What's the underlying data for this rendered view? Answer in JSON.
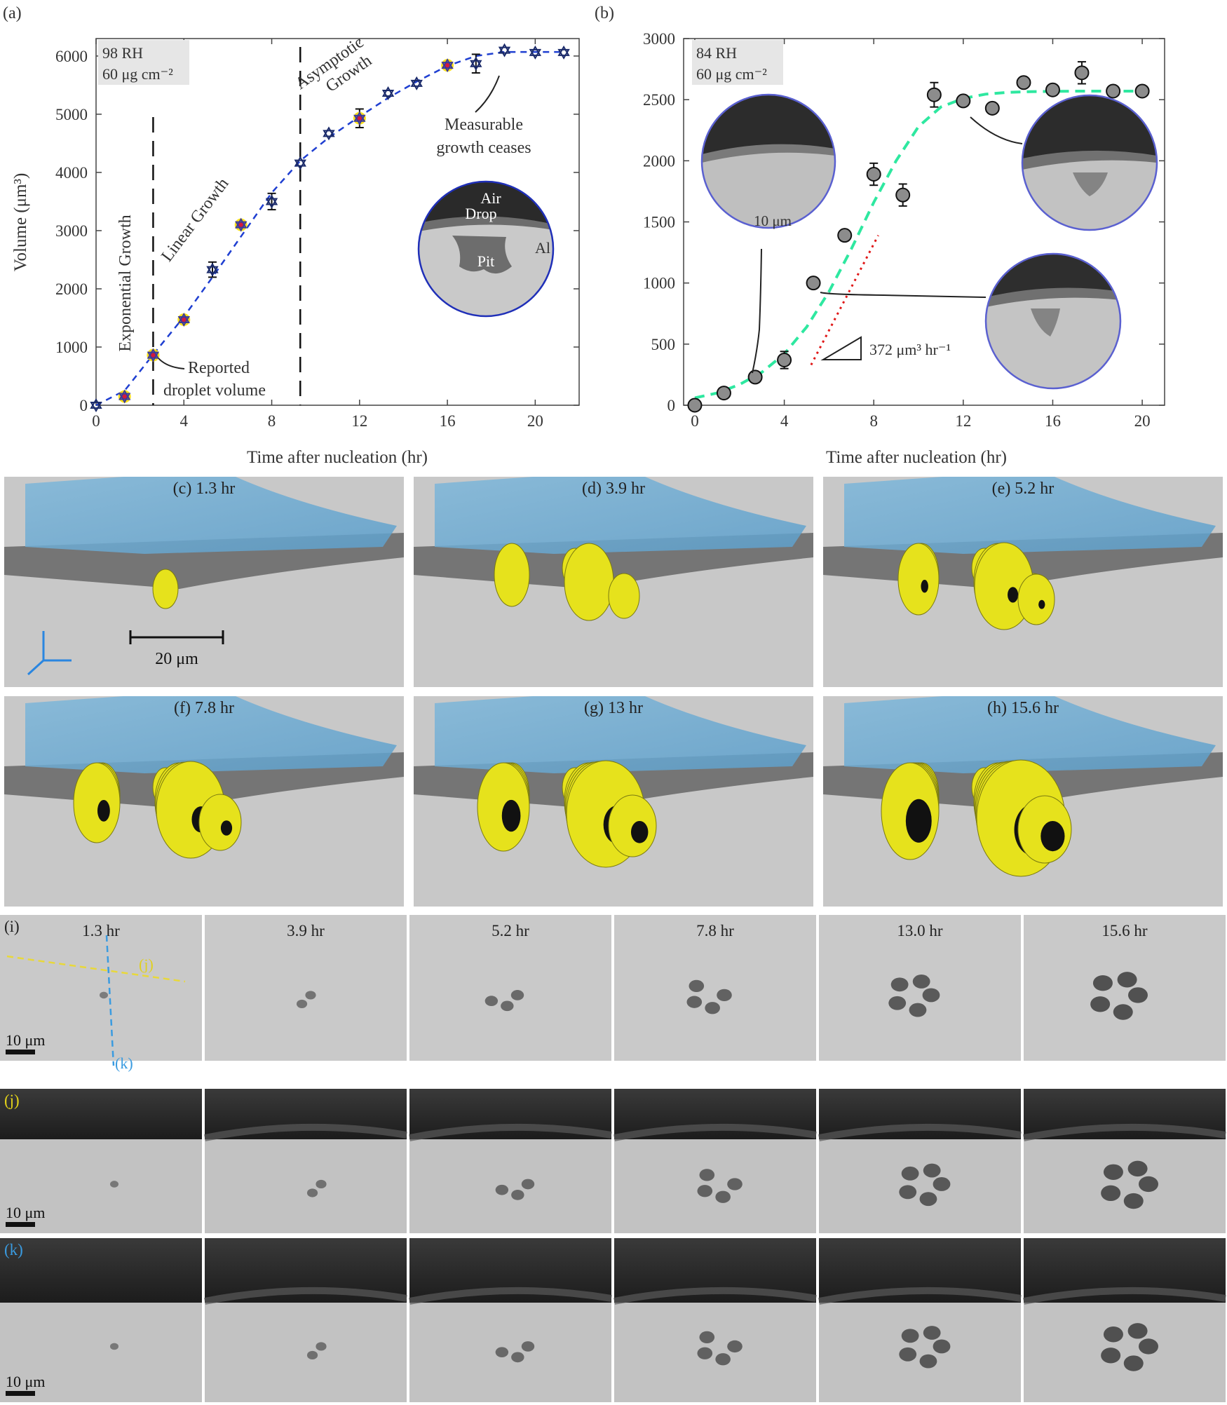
{
  "chart_data": [
    {
      "panel": "(a)",
      "type": "scatter",
      "title": "",
      "xlabel": "Time after nucleation (hr)",
      "ylabel": "Volume (μm³)",
      "xlim": [
        0,
        22
      ],
      "ylim": [
        0,
        6300
      ],
      "xticks": [
        "0",
        "4",
        "8",
        "12",
        "16",
        "20"
      ],
      "yticks": [
        "0",
        "1000",
        "2000",
        "3000",
        "4000",
        "5000",
        "6000"
      ],
      "condition_box": [
        "98 RH",
        "60 μg cm⁻²"
      ],
      "series": [
        {
          "x": [
            0,
            1.3,
            2.6,
            4.0,
            5.3,
            6.6,
            8.0,
            9.3,
            10.6,
            12.0,
            13.3,
            14.6,
            16.0,
            17.3,
            18.6,
            20.0,
            21.3
          ],
          "y": [
            0,
            150,
            860,
            1470,
            2330,
            3100,
            3500,
            4160,
            4670,
            4930,
            5360,
            5530,
            5840,
            5870,
            6100,
            6060,
            6060
          ],
          "err": [
            0,
            0,
            0,
            0,
            130,
            0,
            140,
            0,
            0,
            160,
            0,
            0,
            0,
            160,
            0,
            0,
            0
          ],
          "highlighted": [
            false,
            true,
            true,
            true,
            false,
            true,
            false,
            false,
            false,
            true,
            false,
            false,
            true,
            false,
            false,
            false,
            false
          ]
        }
      ],
      "fit_curve": {
        "x": [
          0,
          1.3,
          2.6,
          4,
          5.3,
          6.6,
          8,
          9.3,
          10.6,
          12,
          13.3,
          14.6,
          16,
          17.3,
          18.6,
          20,
          21.3
        ],
        "y": [
          0,
          250,
          870,
          1520,
          2200,
          2900,
          3650,
          4200,
          4600,
          4960,
          5280,
          5560,
          5830,
          6000,
          6070,
          6070,
          6070
        ]
      },
      "phase_lines_x": [
        2.6,
        9.3
      ],
      "annotations": {
        "exponential": "Exponential Growth",
        "linear": "Linear Growth",
        "asymptotic": [
          "Asymptotic",
          "Growth"
        ],
        "reported": [
          "Reported",
          "droplet volume"
        ],
        "measurable": [
          "Measurable",
          "growth ceases"
        ]
      },
      "inset_labels": {
        "air": "Air",
        "drop": "Drop",
        "al": "Al",
        "pit": "Pit"
      },
      "colors": {
        "marker_main": "#1a1a1a",
        "marker_highlight": "#ffe000",
        "marker_highlight_core": "#d21a3c",
        "fit": "#1f3fd1",
        "error": "#111111"
      }
    },
    {
      "panel": "(b)",
      "type": "scatter",
      "title": "",
      "xlabel": "Time after nucleation (hr)",
      "ylabel": "",
      "xlim": [
        -0.5,
        21
      ],
      "ylim": [
        0,
        3000
      ],
      "xticks": [
        "0",
        "4",
        "8",
        "12",
        "16",
        "20"
      ],
      "yticks": [
        "0",
        "500",
        "1000",
        "1500",
        "2000",
        "2500",
        "3000"
      ],
      "condition_box": [
        "84 RH",
        "60 μg cm⁻²"
      ],
      "series": [
        {
          "x": [
            0,
            1.3,
            2.7,
            4.0,
            5.3,
            6.7,
            8.0,
            9.3,
            10.7,
            12.0,
            13.3,
            14.7,
            16.0,
            17.3,
            18.7,
            20.0
          ],
          "y": [
            0,
            100,
            230,
            370,
            1000,
            1390,
            1890,
            1720,
            2540,
            2490,
            2430,
            2640,
            2580,
            2720,
            2570,
            2570
          ],
          "err": [
            0,
            0,
            0,
            70,
            0,
            0,
            90,
            90,
            100,
            0,
            0,
            0,
            0,
            90,
            0,
            0
          ]
        }
      ],
      "fit_curve": {
        "x": [
          0,
          1,
          2,
          3,
          4,
          5,
          6,
          7,
          8,
          9,
          10,
          11,
          12,
          13,
          14,
          15,
          16,
          17,
          18,
          19,
          20
        ],
        "y": [
          60,
          100,
          170,
          270,
          420,
          640,
          930,
          1280,
          1660,
          2000,
          2280,
          2440,
          2510,
          2545,
          2560,
          2566,
          2568,
          2570,
          2570,
          2570,
          2570
        ]
      },
      "slope_line": {
        "x": [
          5.2,
          8.2
        ],
        "y": [
          330,
          1390
        ]
      },
      "slope_label": "372 μm³ hr⁻¹",
      "scale_label": "10 μm",
      "colors": {
        "marker": "#8c8c8c",
        "fit": "#2ee8a0",
        "slope": "#e01818"
      }
    }
  ],
  "render_panels": [
    {
      "label": "(c) 1.3 hr",
      "level": 0
    },
    {
      "label": "(d) 3.9 hr",
      "level": 1
    },
    {
      "label": "(e) 5.2 hr",
      "level": 2
    },
    {
      "label": "(f) 7.8 hr",
      "level": 3
    },
    {
      "label": "(g) 13 hr",
      "level": 4
    },
    {
      "label": "(h) 15.6 hr",
      "level": 5
    }
  ],
  "render_scale": "20 μm",
  "tomography": {
    "times": [
      "1.3 hr",
      "3.9 hr",
      "5.2 hr",
      "7.8 hr",
      "13.0 hr",
      "15.6 hr"
    ],
    "rows": [
      {
        "label": "(i)",
        "label_color": "#222222"
      },
      {
        "label": "(j)",
        "label_color": "#e2d21a"
      },
      {
        "label": "(k)",
        "label_color": "#3a9be0"
      }
    ],
    "line_j": "(j)",
    "line_k": "(k)",
    "scale": "10 μm"
  }
}
